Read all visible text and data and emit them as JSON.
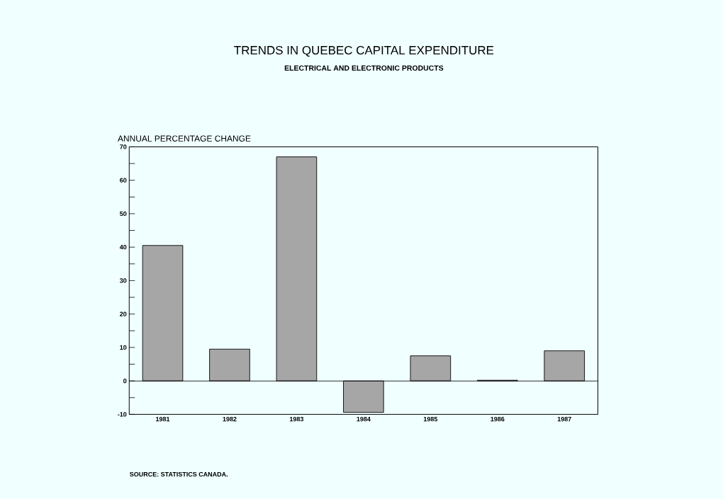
{
  "chart_data": {
    "type": "bar",
    "title": "TRENDS IN QUEBEC CAPITAL EXPENDITURE",
    "subtitle": "ELECTRICAL AND ELECTRONIC PRODUCTS",
    "ylabel": "ANNUAL PERCENTAGE CHANGE",
    "categories": [
      "1981",
      "1982",
      "1983",
      "1984",
      "1985",
      "1986",
      "1987"
    ],
    "values": [
      40.5,
      9.5,
      67,
      -9.4,
      7.5,
      0.2,
      9
    ],
    "color": "#a6a6a6",
    "ylim": [
      -10,
      70
    ],
    "yticks": [
      -10,
      {
        "value": -5,
        "label": null
      },
      0,
      {
        "value": 5,
        "label": null
      },
      10,
      {
        "value": 15,
        "label": null
      },
      20,
      {
        "value": 25,
        "label": null
      },
      30,
      {
        "value": 35,
        "label": null
      },
      40,
      {
        "value": 45,
        "label": null
      },
      50,
      {
        "value": 55,
        "label": null
      },
      60,
      {
        "value": 65,
        "label": null
      },
      70
    ],
    "grid": false,
    "legend": false,
    "ref_lines": [
      {
        "axis": "y",
        "value": 0,
        "color": "#000000"
      }
    ],
    "annotations": [
      "SOURCE:   STATISTICS CANADA."
    ]
  }
}
